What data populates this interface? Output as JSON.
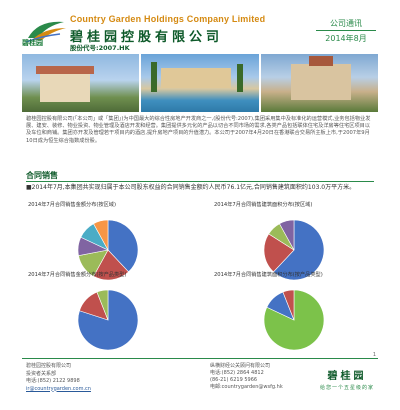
{
  "header": {
    "company_en": "Country Garden Holdings Company Limited",
    "company_cn": "碧桂园控股有限公司",
    "stock_code": "股份代号:2007.HK",
    "logo_text": "碧桂园",
    "badge_title": "公司通讯",
    "badge_date": "2014年8月"
  },
  "intro": "碧桂园控股有限公司(「本公司」或「集团」)为中国最大的综合性房地产开发商之一,(股份代号:2007),集团采用集中及标准化的运营模式,业务包括物业发展、建安、装修、物业投资、物业管理及酒店开发和经营。集团提供多元化的产品以切合不同市场的需求,各类产品包括联体住宅及洋房等住宅区项目以及车位和商铺。集团亦开发及管理若干项目内的酒店,提升房地产项目的升值潜力。本公司于2007年4月20日在香港联合交易所主板上市,于2007年9月10日成为恒生综合指数成份股。",
  "sales": {
    "heading": "合同销售",
    "summary": "2014年7月,本集团共实现归属于本公司股东权益的合同销售金额约人民币76.1亿元,合同销售建筑面积约103.0万平方米。"
  },
  "charts_titles": [
    "2014年7月合同销售金额分布(按区域)",
    "2014年7月合同销售建筑面积分布(按区域)",
    "2014年7月合同销售金额分布(按产品类型)",
    "2014年7月合同销售建筑面积分布(按产品类型)"
  ],
  "chart_data": [
    {
      "type": "pie",
      "title": "2014年7月合同销售金额分布(按区域)",
      "values": [
        38,
        20,
        14,
        10,
        10,
        8
      ],
      "colors": [
        "#4472c4",
        "#c0504d",
        "#9bbb59",
        "#8064a2",
        "#4bacc6",
        "#f79646"
      ]
    },
    {
      "type": "pie",
      "title": "2014年7月合同销售建筑面积分布(按区域)",
      "values": [
        62,
        22,
        8,
        8
      ],
      "colors": [
        "#4472c4",
        "#c0504d",
        "#9bbb59",
        "#8064a2"
      ]
    },
    {
      "type": "pie",
      "title": "2014年7月合同销售金额分布(按产品类型)",
      "values": [
        80,
        14,
        6
      ],
      "colors": [
        "#4472c4",
        "#c0504d",
        "#9bbb59"
      ]
    },
    {
      "type": "pie",
      "title": "2014年7月合同销售建筑面积分布(按产品类型)",
      "values": [
        82,
        12,
        6
      ],
      "colors": [
        "#7cc24a",
        "#4472c4",
        "#c0504d"
      ]
    }
  ],
  "footer": {
    "contact_title": "碧桂园控股有限公司",
    "contact_dept": "投资者关系部",
    "contact_phone": "电话:(852) 2122 9898",
    "contact_email": "ir@countrygarden.com.cn",
    "pr_company": "纵横财经公关顾问有限公司",
    "pr_phone": "电话:(852) 2864 4812",
    "pr_phone2": "(86-21) 6219 5966",
    "pr_email": "电邮:countrygarden@wsfg.hk",
    "brand": "碧桂园",
    "slogan": "给您一个五星级的家",
    "page_num": "1"
  }
}
